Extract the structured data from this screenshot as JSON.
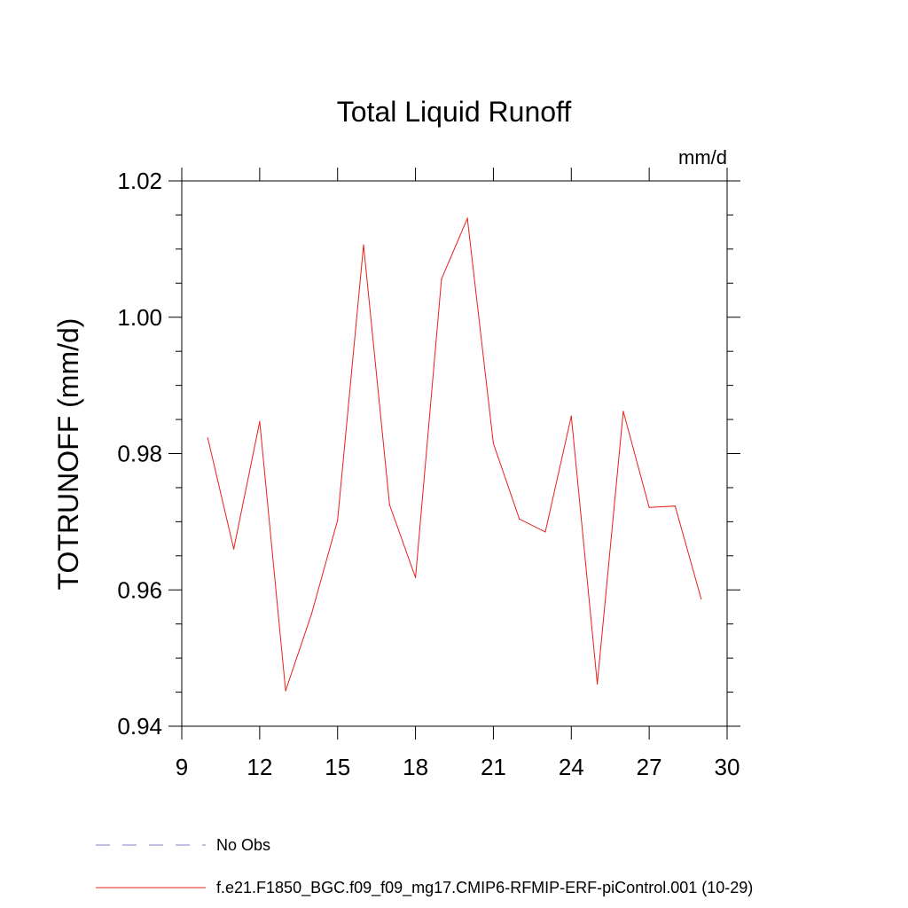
{
  "chart_data": {
    "type": "line",
    "title": "Total Liquid Runoff",
    "units_label": "mm/d",
    "xlabel": "",
    "ylabel": "TOTRUNOFF  (mm/d)",
    "xlim": [
      9,
      30
    ],
    "ylim": [
      0.94,
      1.02
    ],
    "x_ticks": [
      9,
      12,
      15,
      18,
      21,
      24,
      27,
      30
    ],
    "x_tick_labels": [
      "9",
      "12",
      "15",
      "18",
      "21",
      "24",
      "27",
      "30"
    ],
    "y_ticks": [
      0.94,
      0.96,
      0.98,
      1.0,
      1.02
    ],
    "y_tick_labels": [
      "0.94",
      "0.96",
      "0.98",
      "1.00",
      "1.02"
    ],
    "grid": false,
    "legend_position": "bottom",
    "series": [
      {
        "name": "f.e21.F1850_BGC.f09_f09_mg17.CMIP6-RFMIP-ERF-piControl.001 (10-29)",
        "color": "#e8201b",
        "x": [
          10,
          11,
          12,
          13,
          14,
          15,
          16,
          17,
          18,
          19,
          20,
          21,
          22,
          23,
          24,
          25,
          26,
          27,
          28,
          29
        ],
        "y": [
          0.9823,
          0.966,
          0.9847,
          0.9452,
          0.9565,
          0.9702,
          1.0106,
          0.9725,
          0.9618,
          1.0056,
          1.0145,
          0.9815,
          0.9704,
          0.9685,
          0.9855,
          0.9462,
          0.9862,
          0.9721,
          0.9723,
          0.9587
        ]
      }
    ],
    "legend": [
      {
        "label": "No Obs",
        "style": "dashed",
        "color": "#8080c0"
      },
      {
        "label": "f.e21.F1850_BGC.f09_f09_mg17.CMIP6-RFMIP-ERF-piControl.001 (10-29)",
        "style": "solid",
        "color": "#e8201b"
      }
    ]
  }
}
